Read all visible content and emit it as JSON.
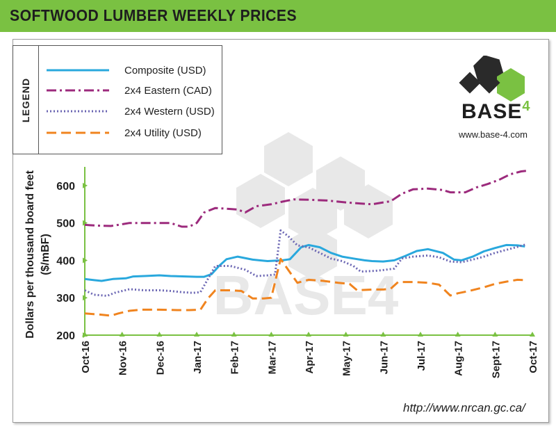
{
  "header": {
    "title": "SOFTWOOD LUMBER WEEKLY PRICES"
  },
  "legend": {
    "heading": "LEGEND",
    "items": [
      {
        "label": "Composite (USD)",
        "color": "#29a8dd",
        "style": "solid"
      },
      {
        "label": "2x4 Eastern (CAD)",
        "color": "#9c2a7c",
        "style": "dash-dot"
      },
      {
        "label": "2x4 Western (USD)",
        "color": "#6b66b3",
        "style": "dotted"
      },
      {
        "label": "2x4 Utility (USD)",
        "color": "#f0841f",
        "style": "dashed"
      }
    ]
  },
  "brand": {
    "name": "BASE",
    "superscript": "4",
    "url": "www.base-4.com",
    "watermark_text": "BASE4"
  },
  "source": "http://www.nrcan.gc.ca/",
  "chart_data": {
    "type": "line",
    "title": "",
    "xlabel": "",
    "ylabel": "Dollars per thousand board feet ($/mBF)",
    "ylim": [
      200,
      650
    ],
    "yticks": [
      200,
      300,
      400,
      500,
      600
    ],
    "ytick_labels": [
      "200",
      "300",
      "400",
      "500",
      "600"
    ],
    "xlim": [
      0,
      12
    ],
    "xticks": [
      0,
      1,
      2,
      3,
      4,
      5,
      6,
      7,
      8,
      9,
      10,
      11,
      12
    ],
    "xtick_labels": [
      "Oct-16",
      "Nov-16",
      "Dec-16",
      "Jan-17",
      "Feb-17",
      "Mar-17",
      "Apr-17",
      "May-17",
      "Jun-17",
      "Jul-17",
      "Aug-17",
      "Sept-17",
      "Oct-17"
    ],
    "grid": false,
    "legend_position": "top-left",
    "series": [
      {
        "name": "Composite (USD)",
        "color": "#29a8dd",
        "style": "solid",
        "points": [
          [
            0,
            350
          ],
          [
            0.25,
            347
          ],
          [
            0.45,
            345
          ],
          [
            0.75,
            350
          ],
          [
            1.1,
            352
          ],
          [
            1.3,
            357
          ],
          [
            1.6,
            358
          ],
          [
            2.0,
            360
          ],
          [
            2.3,
            358
          ],
          [
            2.7,
            357
          ],
          [
            3.0,
            356
          ],
          [
            3.2,
            356
          ],
          [
            3.4,
            363
          ],
          [
            3.6,
            385
          ],
          [
            3.8,
            403
          ],
          [
            4.1,
            410
          ],
          [
            4.5,
            402
          ],
          [
            4.9,
            398
          ],
          [
            5.3,
            400
          ],
          [
            5.5,
            403
          ],
          [
            5.8,
            435
          ],
          [
            6.0,
            441
          ],
          [
            6.3,
            435
          ],
          [
            6.6,
            420
          ],
          [
            6.9,
            410
          ],
          [
            7.2,
            405
          ],
          [
            7.5,
            400
          ],
          [
            7.7,
            398
          ],
          [
            8.0,
            397
          ],
          [
            8.3,
            400
          ],
          [
            8.6,
            412
          ],
          [
            8.9,
            425
          ],
          [
            9.2,
            430
          ],
          [
            9.6,
            420
          ],
          [
            9.9,
            402
          ],
          [
            10.1,
            400
          ],
          [
            10.4,
            410
          ],
          [
            10.7,
            424
          ],
          [
            11.0,
            433
          ],
          [
            11.3,
            441
          ],
          [
            11.6,
            440
          ],
          [
            11.8,
            437
          ]
        ]
      },
      {
        "name": "2x4 Eastern (CAD)",
        "color": "#9c2a7c",
        "style": "dash-dot",
        "points": [
          [
            0,
            495
          ],
          [
            0.3,
            493
          ],
          [
            0.7,
            492
          ],
          [
            0.9,
            495
          ],
          [
            1.2,
            500
          ],
          [
            1.6,
            500
          ],
          [
            2.0,
            500
          ],
          [
            2.3,
            500
          ],
          [
            2.6,
            490
          ],
          [
            2.8,
            490
          ],
          [
            3.0,
            500
          ],
          [
            3.2,
            528
          ],
          [
            3.5,
            540
          ],
          [
            3.8,
            538
          ],
          [
            4.1,
            536
          ],
          [
            4.3,
            528
          ],
          [
            4.6,
            545
          ],
          [
            5.0,
            550
          ],
          [
            5.3,
            557
          ],
          [
            5.6,
            563
          ],
          [
            6.0,
            562
          ],
          [
            6.5,
            560
          ],
          [
            7.0,
            555
          ],
          [
            7.4,
            552
          ],
          [
            7.7,
            550
          ],
          [
            8.0,
            555
          ],
          [
            8.2,
            558
          ],
          [
            8.5,
            578
          ],
          [
            8.8,
            590
          ],
          [
            9.2,
            592
          ],
          [
            9.6,
            588
          ],
          [
            9.8,
            582
          ],
          [
            10.2,
            582
          ],
          [
            10.5,
            595
          ],
          [
            10.8,
            604
          ],
          [
            11.1,
            615
          ],
          [
            11.4,
            630
          ],
          [
            11.7,
            638
          ],
          [
            11.9,
            640
          ]
        ]
      },
      {
        "name": "2x4 Western (USD)",
        "color": "#6b66b3",
        "style": "dotted",
        "points": [
          [
            0,
            320
          ],
          [
            0.25,
            308
          ],
          [
            0.6,
            305
          ],
          [
            0.8,
            313
          ],
          [
            1.2,
            323
          ],
          [
            1.6,
            320
          ],
          [
            2.0,
            320
          ],
          [
            2.3,
            318
          ],
          [
            2.6,
            315
          ],
          [
            2.9,
            313
          ],
          [
            3.1,
            315
          ],
          [
            3.3,
            350
          ],
          [
            3.5,
            385
          ],
          [
            3.9,
            385
          ],
          [
            4.3,
            375
          ],
          [
            4.6,
            358
          ],
          [
            4.9,
            360
          ],
          [
            5.1,
            362
          ],
          [
            5.25,
            480
          ],
          [
            5.45,
            465
          ],
          [
            5.7,
            440
          ],
          [
            6.0,
            435
          ],
          [
            6.3,
            420
          ],
          [
            6.6,
            405
          ],
          [
            6.9,
            398
          ],
          [
            7.2,
            385
          ],
          [
            7.4,
            370
          ],
          [
            7.8,
            372
          ],
          [
            8.0,
            374
          ],
          [
            8.3,
            378
          ],
          [
            8.5,
            405
          ],
          [
            8.8,
            410
          ],
          [
            9.2,
            413
          ],
          [
            9.5,
            408
          ],
          [
            9.8,
            397
          ],
          [
            10.1,
            395
          ],
          [
            10.4,
            402
          ],
          [
            10.7,
            410
          ],
          [
            11.0,
            420
          ],
          [
            11.3,
            428
          ],
          [
            11.6,
            436
          ],
          [
            11.8,
            442
          ]
        ]
      },
      {
        "name": "2x4 Utility (USD)",
        "color": "#f0841f",
        "style": "dashed",
        "points": [
          [
            0,
            258
          ],
          [
            0.4,
            255
          ],
          [
            0.7,
            252
          ],
          [
            0.9,
            258
          ],
          [
            1.2,
            265
          ],
          [
            1.5,
            268
          ],
          [
            2.0,
            268
          ],
          [
            2.5,
            267
          ],
          [
            2.8,
            267
          ],
          [
            3.1,
            268
          ],
          [
            3.3,
            298
          ],
          [
            3.5,
            320
          ],
          [
            3.9,
            320
          ],
          [
            4.2,
            318
          ],
          [
            4.5,
            298
          ],
          [
            4.8,
            298
          ],
          [
            5.0,
            300
          ],
          [
            5.25,
            404
          ],
          [
            5.45,
            375
          ],
          [
            5.7,
            340
          ],
          [
            6.0,
            348
          ],
          [
            6.4,
            345
          ],
          [
            6.8,
            340
          ],
          [
            7.1,
            337
          ],
          [
            7.3,
            320
          ],
          [
            7.7,
            322
          ],
          [
            8.0,
            322
          ],
          [
            8.2,
            324
          ],
          [
            8.4,
            342
          ],
          [
            8.8,
            342
          ],
          [
            9.2,
            340
          ],
          [
            9.5,
            335
          ],
          [
            9.8,
            306
          ],
          [
            10.0,
            312
          ],
          [
            10.3,
            318
          ],
          [
            10.7,
            328
          ],
          [
            11.0,
            337
          ],
          [
            11.3,
            343
          ],
          [
            11.6,
            348
          ],
          [
            11.8,
            347
          ]
        ]
      }
    ]
  }
}
